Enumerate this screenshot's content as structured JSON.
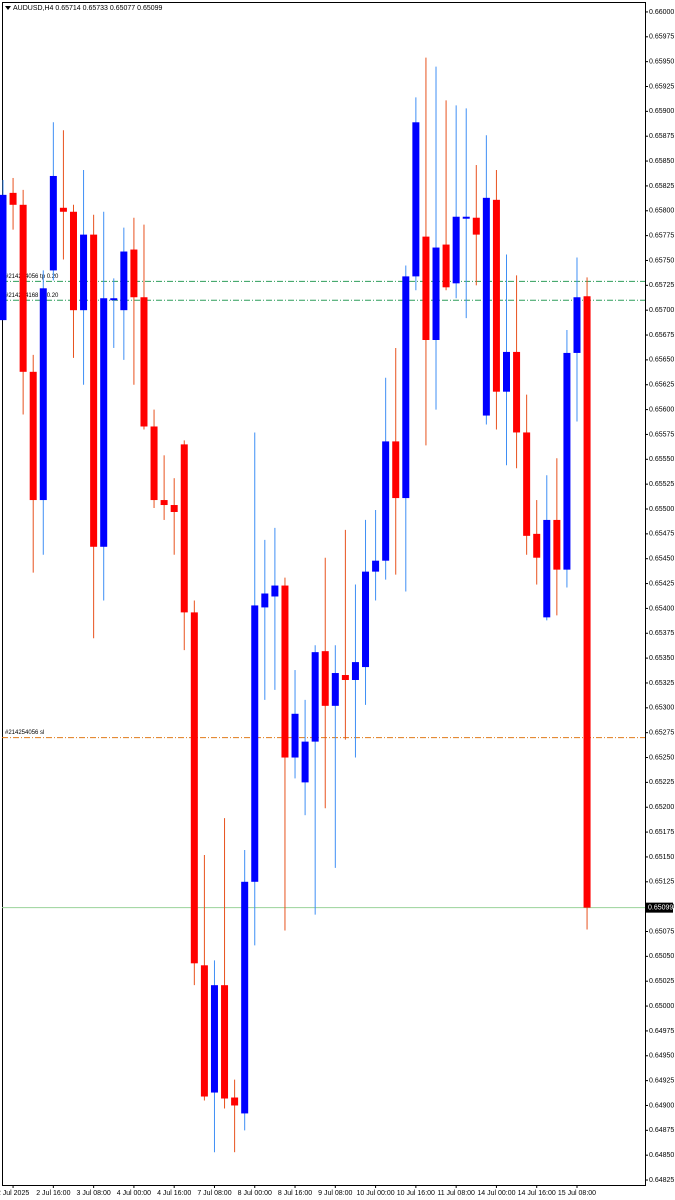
{
  "chart_data": {
    "type": "candlestick",
    "title": "AUDUSD,H4  0.65714 0.65733 0.65077 0.65099",
    "up_color": "#0000ff",
    "down_color": "#ff0000",
    "up_wick_color": "#3f8ff5",
    "down_wick_color": "#e8521e",
    "categories": [
      null,
      "2 Jul 2025",
      null,
      null,
      null,
      "2 Jul 16:00",
      null,
      null,
      null,
      "3 Jul 08:00",
      null,
      null,
      null,
      "4 Jul 00:00",
      null,
      null,
      null,
      "4 Jul 16:00",
      null,
      null,
      null,
      "7 Jul 08:00",
      null,
      null,
      null,
      "8 Jul 00:00",
      null,
      null,
      null,
      "8 Jul 16:00",
      null,
      null,
      null,
      "9 Jul 08:00",
      null,
      null,
      null,
      "10 Jul 00:00",
      null,
      null,
      null,
      "10 Jul 16:00",
      null,
      null,
      null,
      "11 Jul 08:00",
      null,
      null,
      null,
      "14 Jul 00:00",
      null,
      null,
      null,
      "14 Jul 16:00",
      null,
      null,
      null,
      "15 Jul 08:00",
      null
    ],
    "open": [
      0.6569,
      0.65818,
      0.65806,
      0.65638,
      0.65509,
      0.6574,
      0.65803,
      0.65799,
      0.657,
      0.65776,
      0.65462,
      0.6571,
      0.657,
      0.65761,
      0.65713,
      0.65583,
      0.65509,
      0.65504,
      0.65565,
      0.65396,
      0.65041,
      0.64913,
      0.65021,
      0.64908,
      0.64892,
      0.65125,
      0.65401,
      0.65412,
      0.65423,
      0.6525,
      0.65225,
      0.65266,
      0.65357,
      0.65302,
      0.65333,
      0.65328,
      0.65341,
      0.65437,
      0.65448,
      0.65568,
      0.65511,
      0.65734,
      0.65774,
      0.6567,
      0.65766,
      0.65727,
      0.65792,
      0.65793,
      0.65594,
      0.65811,
      0.65618,
      0.65658,
      0.65577,
      0.65475,
      0.65391,
      0.65489,
      0.65439,
      0.65657,
      0.65714
    ],
    "high": [
      0.65831,
      0.65833,
      0.65821,
      0.65655,
      0.6574,
      0.65889,
      0.65881,
      0.65806,
      0.65841,
      0.65796,
      0.65799,
      0.65732,
      0.65783,
      0.65793,
      0.65786,
      0.656,
      0.65554,
      0.65531,
      0.65569,
      0.65408,
      0.65152,
      0.65046,
      0.65189,
      0.64926,
      0.65157,
      0.65577,
      0.65469,
      0.65481,
      0.65431,
      0.65338,
      0.65308,
      0.65363,
      0.65451,
      0.65363,
      0.65479,
      0.65424,
      0.65489,
      0.65499,
      0.65632,
      0.65662,
      0.65745,
      0.65914,
      0.65954,
      0.65945,
      0.65911,
      0.65906,
      0.65903,
      0.65846,
      0.65876,
      0.65841,
      0.65756,
      0.65735,
      0.65615,
      0.65509,
      0.65534,
      0.65551,
      0.6568,
      0.65753,
      0.65733
    ],
    "low": [
      0.6569,
      0.65781,
      0.65595,
      0.65436,
      0.65454,
      0.6573,
      0.65751,
      0.65652,
      0.65625,
      0.6537,
      0.65408,
      0.65662,
      0.6565,
      0.65625,
      0.6558,
      0.65501,
      0.65489,
      0.65454,
      0.65358,
      0.65021,
      0.64905,
      0.64853,
      0.64897,
      0.64853,
      0.64875,
      0.65061,
      0.65308,
      0.65318,
      0.65076,
      0.65229,
      0.65192,
      0.65092,
      0.65199,
      0.65139,
      0.65268,
      0.6525,
      0.65303,
      0.65408,
      0.65429,
      0.65434,
      0.65417,
      0.6572,
      0.65564,
      0.656,
      0.6572,
      0.65712,
      0.65692,
      0.65725,
      0.65585,
      0.6558,
      0.65544,
      0.65541,
      0.65454,
      0.65424,
      0.65388,
      0.65393,
      0.65421,
      0.65588,
      0.65077
    ],
    "close": [
      0.65816,
      0.65806,
      0.65638,
      0.65509,
      0.65722,
      0.65835,
      0.65799,
      0.657,
      0.65776,
      0.65462,
      0.65712,
      0.65712,
      0.65759,
      0.65713,
      0.65583,
      0.65509,
      0.65504,
      0.65497,
      0.65396,
      0.65043,
      0.64909,
      0.65021,
      0.64907,
      0.649,
      0.65125,
      0.65403,
      0.65415,
      0.65423,
      0.6525,
      0.65294,
      0.65266,
      0.65356,
      0.65302,
      0.65335,
      0.65328,
      0.65346,
      0.65437,
      0.65448,
      0.65568,
      0.65511,
      0.65734,
      0.65889,
      0.6567,
      0.65763,
      0.65723,
      0.65794,
      0.65794,
      0.65776,
      0.65813,
      0.65618,
      0.65658,
      0.65577,
      0.65473,
      0.65451,
      0.65489,
      0.65439,
      0.65657,
      0.65713,
      0.65099
    ],
    "ylim": [
      0.6482,
      0.6601
    ],
    "yticks": [
      0.64825,
      {
        "value": 0.6485,
        "label": "0.64850"
      },
      0.64875,
      {
        "value": 0.649,
        "label": "0.64900"
      },
      0.64925,
      {
        "value": 0.6495,
        "label": "0.64950"
      },
      0.64975,
      {
        "value": 0.65,
        "label": "0.65000"
      },
      0.65025,
      {
        "value": 0.6505,
        "label": "0.65050"
      },
      0.65075,
      {
        "value": 0.651,
        "label": "0.65100"
      },
      0.65125,
      {
        "value": 0.6515,
        "label": "0.65150"
      },
      0.65175,
      {
        "value": 0.652,
        "label": "0.65200"
      },
      0.65225,
      {
        "value": 0.6525,
        "label": "0.65250"
      },
      0.65275,
      {
        "value": 0.653,
        "label": "0.65300"
      },
      0.65325,
      {
        "value": 0.6535,
        "label": "0.65350"
      },
      0.65375,
      {
        "value": 0.654,
        "label": "0.65400"
      },
      0.65425,
      {
        "value": 0.6545,
        "label": "0.65450"
      },
      0.65475,
      {
        "value": 0.655,
        "label": "0.65500"
      },
      0.65525,
      {
        "value": 0.6555,
        "label": "0.65550"
      },
      0.65575,
      {
        "value": 0.656,
        "label": "0.65600"
      },
      0.65625,
      {
        "value": 0.6565,
        "label": "0.65650"
      },
      0.65675,
      {
        "value": 0.657,
        "label": "0.65700"
      },
      0.65725,
      {
        "value": 0.6575,
        "label": "0.65750"
      },
      0.65775,
      {
        "value": 0.658,
        "label": "0.65800"
      },
      0.65825,
      {
        "value": 0.6585,
        "label": "0.65850"
      },
      0.65875,
      {
        "value": 0.659,
        "label": "0.65900"
      },
      0.65925,
      {
        "value": 0.6595,
        "label": "0.65950"
      },
      0.65975,
      {
        "value": 0.66,
        "label": "0.66000"
      }
    ],
    "levels": [
      {
        "label": "#214254056 tp 0.20",
        "value": 0.65729,
        "color": "#2e9e5b"
      },
      {
        "label": "#214254168 tp 0.20",
        "value": 0.6571,
        "color": "#2e9e5b"
      },
      {
        "label": "#214254056 sl",
        "value": 0.6527,
        "color": "#e07b1a"
      }
    ],
    "bid": 0.65099,
    "bid_color": "#9ad39a"
  }
}
